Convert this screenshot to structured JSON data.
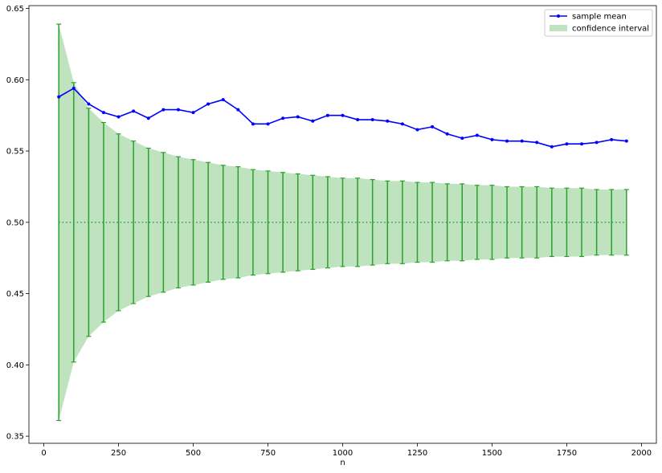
{
  "chart_data": {
    "type": "line",
    "title": "",
    "xlabel": "n",
    "ylabel": "",
    "xlim": [
      -50,
      2050
    ],
    "ylim": [
      0.345,
      0.652
    ],
    "xticks": [
      0,
      250,
      500,
      750,
      1000,
      1250,
      1500,
      1750,
      2000
    ],
    "xtick_labels": [
      "0",
      "250",
      "500",
      "750",
      "1000",
      "1250",
      "1500",
      "1750",
      "2000"
    ],
    "yticks": [
      0.35,
      0.4,
      0.45,
      0.5,
      0.55,
      0.6,
      0.65
    ],
    "ytick_labels": [
      "0.35",
      "0.40",
      "0.45",
      "0.50",
      "0.55",
      "0.60",
      "0.65"
    ],
    "grid": false,
    "legend_position": "top-right",
    "x": [
      50,
      100,
      150,
      200,
      250,
      300,
      350,
      400,
      450,
      500,
      550,
      600,
      650,
      700,
      750,
      800,
      850,
      900,
      950,
      1000,
      1050,
      1100,
      1150,
      1200,
      1250,
      1300,
      1350,
      1400,
      1450,
      1500,
      1550,
      1600,
      1650,
      1700,
      1750,
      1800,
      1850,
      1900,
      1950
    ],
    "series": [
      {
        "name": "sample mean",
        "color": "#0000ff",
        "marker": "dot",
        "values": [
          0.588,
          0.594,
          0.583,
          0.577,
          0.574,
          0.578,
          0.573,
          0.579,
          0.579,
          0.577,
          0.583,
          0.586,
          0.579,
          0.569,
          0.569,
          0.573,
          0.574,
          0.571,
          0.575,
          0.575,
          0.572,
          0.572,
          0.571,
          0.569,
          0.565,
          0.567,
          0.562,
          0.559,
          0.561,
          0.558,
          0.557,
          0.557,
          0.556,
          0.553,
          0.555,
          0.555,
          0.556,
          0.558,
          0.557
        ]
      },
      {
        "name": "confidence interval",
        "type": "area_band",
        "color": "#2ca02c",
        "fill_opacity": 0.3,
        "lower": [
          0.361,
          0.402,
          0.42,
          0.43,
          0.438,
          0.443,
          0.448,
          0.451,
          0.454,
          0.456,
          0.458,
          0.46,
          0.461,
          0.463,
          0.464,
          0.465,
          0.466,
          0.467,
          0.468,
          0.469,
          0.469,
          0.47,
          0.471,
          0.471,
          0.472,
          0.472,
          0.473,
          0.473,
          0.474,
          0.474,
          0.475,
          0.475,
          0.475,
          0.476,
          0.476,
          0.476,
          0.477,
          0.477,
          0.477
        ],
        "upper": [
          0.639,
          0.598,
          0.58,
          0.57,
          0.562,
          0.557,
          0.552,
          0.549,
          0.546,
          0.544,
          0.542,
          0.54,
          0.539,
          0.537,
          0.536,
          0.535,
          0.534,
          0.533,
          0.532,
          0.531,
          0.531,
          0.53,
          0.529,
          0.529,
          0.528,
          0.528,
          0.527,
          0.527,
          0.526,
          0.526,
          0.525,
          0.525,
          0.525,
          0.524,
          0.524,
          0.524,
          0.523,
          0.523,
          0.523
        ]
      }
    ],
    "reference_line": {
      "y": 0.5,
      "style": "dotted",
      "color": "#2ca02c"
    }
  }
}
